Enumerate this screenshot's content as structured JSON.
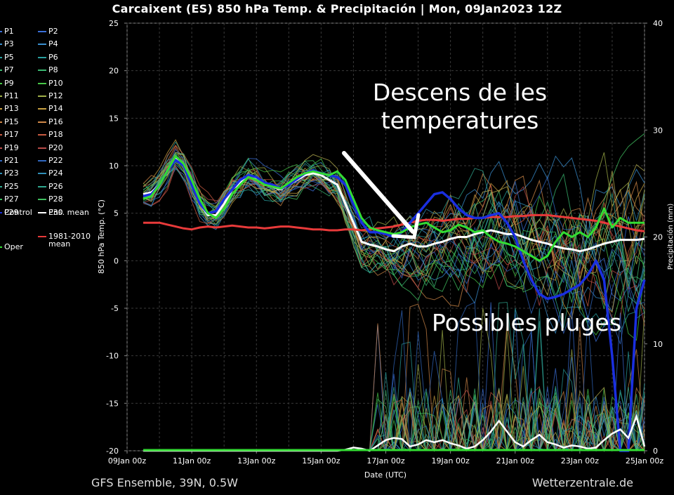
{
  "title": "Carcaixent  (ES)  850 hPa Temp. & Precipitación | Mon, 09Jan2023 12Z",
  "footer": {
    "model": "GFS Ensemble, 39N, 0.5W",
    "source": "Wetterzentrale.de"
  },
  "annotations": {
    "descens": [
      "Descens de les",
      "temperatures"
    ],
    "pluges": "Possibles pluges"
  },
  "legend": {
    "members": [
      {
        "label": "P1",
        "color": "#3a6fd8"
      },
      {
        "label": "P2",
        "color": "#3a6fd8"
      },
      {
        "label": "P3",
        "color": "#3a8fd0"
      },
      {
        "label": "P4",
        "color": "#3a8fd0"
      },
      {
        "label": "P5",
        "color": "#2aa0a0"
      },
      {
        "label": "P6",
        "color": "#2aa0a0"
      },
      {
        "label": "P7",
        "color": "#3ab870"
      },
      {
        "label": "P8",
        "color": "#3ab870"
      },
      {
        "label": "P9",
        "color": "#48c848"
      },
      {
        "label": "P10",
        "color": "#48c848"
      },
      {
        "label": "P11",
        "color": "#a0b048"
      },
      {
        "label": "P12",
        "color": "#a0b048"
      },
      {
        "label": "P13",
        "color": "#c8a040"
      },
      {
        "label": "P14",
        "color": "#c8a040"
      },
      {
        "label": "P15",
        "color": "#d08848"
      },
      {
        "label": "P16",
        "color": "#d08848"
      },
      {
        "label": "P17",
        "color": "#c85a40"
      },
      {
        "label": "P18",
        "color": "#c85a40"
      },
      {
        "label": "P19",
        "color": "#b84a48"
      },
      {
        "label": "P20",
        "color": "#b84a48"
      },
      {
        "label": "P21",
        "color": "#3068c0"
      },
      {
        "label": "P22",
        "color": "#3068c0"
      },
      {
        "label": "P23",
        "color": "#3090b8"
      },
      {
        "label": "P24",
        "color": "#3090b8"
      },
      {
        "label": "P25",
        "color": "#30a890"
      },
      {
        "label": "P26",
        "color": "#30a890"
      },
      {
        "label": "P27",
        "color": "#40c060"
      },
      {
        "label": "P28",
        "color": "#40c060"
      },
      {
        "label": "P29",
        "color": "#b8b050"
      },
      {
        "label": "P30",
        "color": "#b8b050"
      }
    ],
    "control": {
      "label": "Control",
      "color": "#1a2fe0"
    },
    "ens_mean": {
      "label": "Ens. mean",
      "color": "#ffffff"
    },
    "climate": {
      "label": "1981-2010 mean",
      "line1": "1981-2010",
      "line2": "mean",
      "color": "#e83a3a"
    },
    "oper": {
      "label": "Oper",
      "color": "#33dd33"
    }
  },
  "chart_data": {
    "type": "line",
    "xlabel": "Date (UTC)",
    "ylabel": "850 hPa Temp. (°C)",
    "y2label": "Precipitación (mm)",
    "x_ticks": [
      "09Jan 00z",
      "11Jan 00z",
      "13Jan 00z",
      "15Jan 00z",
      "17Jan 00z",
      "19Jan 00z",
      "21Jan 00z",
      "23Jan 00z",
      "25Jan 00z"
    ],
    "x_tick_days": [
      0,
      2,
      4,
      6,
      8,
      10,
      12,
      14,
      16
    ],
    "xlim": [
      0,
      16
    ],
    "ylim": [
      -20,
      25
    ],
    "y_ticks": [
      -20,
      -15,
      -10,
      -5,
      0,
      5,
      10,
      15,
      20,
      25
    ],
    "y2lim": [
      0,
      40
    ],
    "y2_ticks": [
      0,
      10,
      20,
      30,
      40
    ],
    "grid": true,
    "day_offsets": [
      0.5,
      0.75,
      1,
      1.25,
      1.5,
      1.75,
      2,
      2.25,
      2.5,
      2.75,
      3,
      3.25,
      3.5,
      3.75,
      4,
      4.25,
      4.5,
      4.75,
      5,
      5.25,
      5.5,
      5.75,
      6,
      6.25,
      6.5,
      6.75,
      7,
      7.25,
      7.5,
      7.75,
      8,
      8.25,
      8.5,
      8.75,
      9,
      9.25,
      9.5,
      9.75,
      10,
      10.25,
      10.5,
      10.75,
      11,
      11.25,
      11.5,
      11.75,
      12,
      12.25,
      12.5,
      12.75,
      13,
      13.25,
      13.5,
      13.75,
      14,
      14.25,
      14.5,
      14.75,
      15,
      15.25,
      15.5,
      15.75,
      16
    ],
    "series": [
      {
        "name": "Ens. mean",
        "color": "#ffffff",
        "width": 3,
        "values": [
          7,
          7.2,
          8,
          9.5,
          10.8,
          10,
          8,
          6,
          4.8,
          4.8,
          6,
          7.5,
          8.2,
          9,
          8.7,
          8,
          7.8,
          7.5,
          8,
          8.5,
          9,
          9.2,
          9,
          8.5,
          8,
          6,
          4,
          2,
          1.7,
          1.5,
          1.2,
          1,
          1.5,
          1.8,
          1.5,
          1.5,
          1.8,
          2,
          2.3,
          2.5,
          2.5,
          2.8,
          3,
          3.2,
          3,
          2.8,
          2.8,
          2.5,
          2.2,
          2,
          1.8,
          1.5,
          1.3,
          1.2,
          1,
          1.2,
          1.5,
          1.8,
          2,
          2.2,
          2.2,
          2.2,
          2.3
        ]
      },
      {
        "name": "1981-2010 mean",
        "color": "#e83a3a",
        "width": 3,
        "values": [
          4,
          4,
          4,
          3.8,
          3.6,
          3.4,
          3.3,
          3.5,
          3.6,
          3.5,
          3.6,
          3.7,
          3.6,
          3.5,
          3.5,
          3.4,
          3.5,
          3.6,
          3.6,
          3.5,
          3.4,
          3.3,
          3.3,
          3.2,
          3.2,
          3.3,
          3.3,
          3.2,
          3.3,
          3.4,
          3.5,
          3.6,
          3.8,
          4,
          4.2,
          4.3,
          4.3,
          4.2,
          4.3,
          4.4,
          4.4,
          4.5,
          4.5,
          4.6,
          4.6,
          4.6,
          4.7,
          4.7,
          4.8,
          4.8,
          4.8,
          4.7,
          4.6,
          4.5,
          4.4,
          4.3,
          4.2,
          4,
          3.8,
          3.6,
          3.4,
          3.2,
          3.1
        ]
      },
      {
        "name": "Control",
        "color": "#1a2fe0",
        "width": 3.5,
        "values": [
          6.8,
          7,
          8,
          9.5,
          10.6,
          10,
          8,
          6,
          5,
          5.2,
          6.5,
          7.5,
          8.5,
          9,
          8.8,
          8.2,
          8,
          7.6,
          8,
          8.6,
          9.2,
          9.5,
          9.2,
          9,
          8.8,
          8,
          6,
          4,
          3,
          3,
          2.8,
          2.5,
          3,
          4,
          5,
          6,
          7,
          7.2,
          6.5,
          5.5,
          4.8,
          4.5,
          4.5,
          4.8,
          5,
          4,
          2.5,
          0,
          -2,
          -3.5,
          -4,
          -3.8,
          -3.5,
          -3,
          -2.5,
          -1.5,
          0,
          -2,
          -10,
          -20,
          -20,
          -5,
          -2
        ]
      },
      {
        "name": "Oper",
        "color": "#33dd33",
        "width": 3,
        "values": [
          6.5,
          6.8,
          8,
          9.5,
          11,
          10.2,
          8.5,
          6.5,
          5,
          4.5,
          5.5,
          7,
          8,
          8.8,
          8.5,
          8,
          7.8,
          7.6,
          8.2,
          8.8,
          9.2,
          9.4,
          9.2,
          9,
          9.4,
          8.5,
          6.5,
          4.5,
          3.5,
          3.2,
          3,
          2.8,
          3,
          3.5,
          3.8,
          4,
          3.5,
          3,
          3.2,
          3.8,
          3.5,
          3,
          3.2,
          2.5,
          2,
          1.8,
          1.5,
          1,
          0.5,
          0,
          0.5,
          2,
          3,
          2.5,
          3,
          2.5,
          3.5,
          5.5,
          3.5,
          4.5,
          4,
          4,
          4
        ]
      }
    ],
    "precip": {
      "name": "Ens. mean precipitation",
      "color": "#ffffff",
      "values": [
        0,
        0,
        0,
        0,
        0,
        0,
        0,
        0,
        0,
        0,
        0,
        0,
        0,
        0,
        0,
        0,
        0,
        0,
        0,
        0,
        0,
        0,
        0,
        0,
        0,
        0.1,
        0.3,
        0.2,
        0,
        0.5,
        1,
        1.2,
        1.1,
        0.4,
        0.6,
        1,
        0.8,
        1,
        0.7,
        0.5,
        0.2,
        0.4,
        1,
        1.8,
        2.8,
        1.8,
        0.8,
        0.4,
        1,
        1.5,
        0.8,
        0.6,
        0.3,
        0.5,
        0.4,
        0.2,
        0.3,
        1,
        1.6,
        2,
        1.2,
        3.2,
        0.4
      ]
    }
  }
}
